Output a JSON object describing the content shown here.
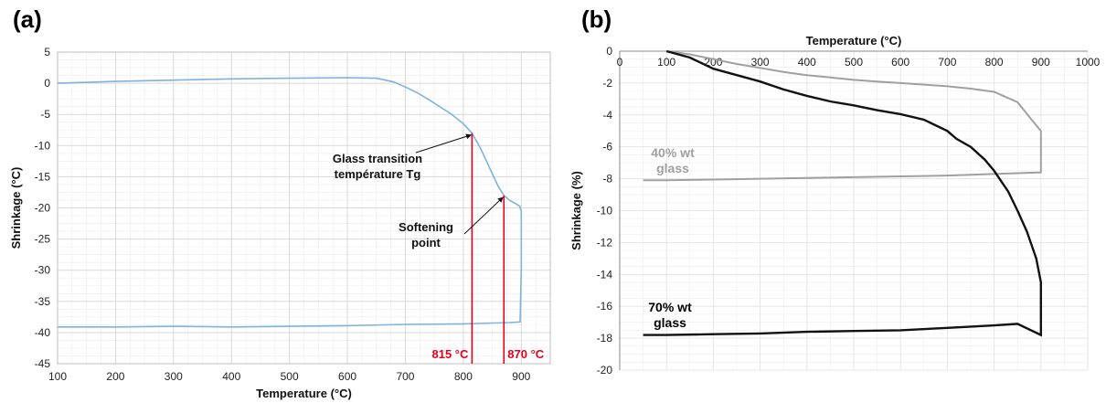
{
  "figure_labels": {
    "a": "(a)",
    "b": "(b)"
  },
  "colors": {
    "curve_a": "#7fb2dc",
    "marker_red": "#e8001c",
    "glass40": "#a0a0a0",
    "glass70": "#111111",
    "grid": "#d9d9d9"
  },
  "chart_data": [
    {
      "type": "line",
      "panel": "(a)",
      "xlabel": "Temperature (°C)",
      "ylabel": "Shrinkage (°C)",
      "xlim": [
        100,
        950
      ],
      "ylim": [
        -45,
        5
      ],
      "xticks": [
        100,
        200,
        300,
        400,
        500,
        600,
        700,
        800,
        900
      ],
      "yticks": [
        5,
        0,
        -5,
        -10,
        -15,
        -20,
        -25,
        -30,
        -35,
        -40,
        -45
      ],
      "grid": true,
      "series": [
        {
          "color": "#7fb2dc",
          "x": [
            100,
            200,
            300,
            400,
            500,
            600,
            650,
            680,
            700,
            720,
            740,
            760,
            780,
            800,
            815,
            830,
            845,
            860,
            870,
            880,
            890,
            897,
            900,
            900,
            900,
            898,
            880,
            800,
            700,
            600,
            500,
            400,
            300,
            200,
            100
          ],
          "y": [
            0,
            0.3,
            0.5,
            0.7,
            0.8,
            0.9,
            0.8,
            0.2,
            -0.6,
            -1.5,
            -2.6,
            -3.8,
            -5.0,
            -6.5,
            -8.0,
            -10.5,
            -13.5,
            -16.5,
            -18.0,
            -18.8,
            -19.3,
            -19.7,
            -20.5,
            -25,
            -30,
            -38.3,
            -38.4,
            -38.6,
            -38.7,
            -38.9,
            -39.0,
            -39.1,
            -39.0,
            -39.1,
            -39.1
          ]
        }
      ],
      "markers": [
        {
          "x": 815,
          "y": -8.0,
          "label": "815 °C"
        },
        {
          "x": 870,
          "y": -18.0,
          "label": "870 °C"
        }
      ],
      "annotations": [
        {
          "lines": [
            "Glass transition",
            "température Tg"
          ],
          "target": "Tg"
        },
        {
          "lines": [
            "Softening",
            "point"
          ],
          "target": "softening"
        }
      ]
    },
    {
      "type": "line",
      "panel": "(b)",
      "xlabel": "Temperature (°C)",
      "ylabel": "Shrinkage (%)",
      "xlim": [
        0,
        1000
      ],
      "ylim": [
        -20,
        0
      ],
      "xticks": [
        0,
        100,
        200,
        300,
        400,
        500,
        600,
        700,
        800,
        900,
        1000
      ],
      "yticks": [
        0,
        -2,
        -4,
        -6,
        -8,
        -10,
        -12,
        -14,
        -16,
        -18,
        -20
      ],
      "grid": true,
      "series": [
        {
          "name": "40% wt glass",
          "label_lines": [
            "40% wt",
            "glass"
          ],
          "color": "#a0a0a0",
          "x": [
            100,
            150,
            200,
            250,
            300,
            350,
            400,
            450,
            500,
            550,
            600,
            650,
            700,
            750,
            800,
            850,
            880,
            900,
            900,
            800,
            700,
            600,
            500,
            400,
            300,
            200,
            100,
            50
          ],
          "y": [
            0,
            -0.2,
            -0.5,
            -0.8,
            -1.05,
            -1.3,
            -1.5,
            -1.65,
            -1.8,
            -1.9,
            -2.0,
            -2.1,
            -2.2,
            -2.35,
            -2.55,
            -3.2,
            -4.3,
            -5.0,
            -7.6,
            -7.7,
            -7.8,
            -7.85,
            -7.9,
            -7.95,
            -8.0,
            -8.05,
            -8.1,
            -8.1
          ]
        },
        {
          "name": "70% wt glass",
          "label_lines": [
            "70% wt",
            "glass"
          ],
          "color": "#111111",
          "x": [
            100,
            150,
            200,
            250,
            300,
            350,
            400,
            450,
            500,
            550,
            600,
            650,
            700,
            720,
            750,
            780,
            800,
            830,
            850,
            870,
            890,
            900,
            900,
            900,
            850,
            800,
            700,
            600,
            500,
            400,
            300,
            200,
            100,
            50
          ],
          "y": [
            0,
            -0.4,
            -1.1,
            -1.5,
            -1.9,
            -2.4,
            -2.8,
            -3.15,
            -3.4,
            -3.7,
            -3.95,
            -4.3,
            -5.0,
            -5.5,
            -6.0,
            -6.8,
            -7.5,
            -8.8,
            -10.0,
            -11.3,
            -13.0,
            -14.5,
            -16.5,
            -17.8,
            -17.1,
            -17.2,
            -17.35,
            -17.5,
            -17.55,
            -17.6,
            -17.7,
            -17.75,
            -17.8,
            -17.8
          ]
        }
      ]
    }
  ]
}
